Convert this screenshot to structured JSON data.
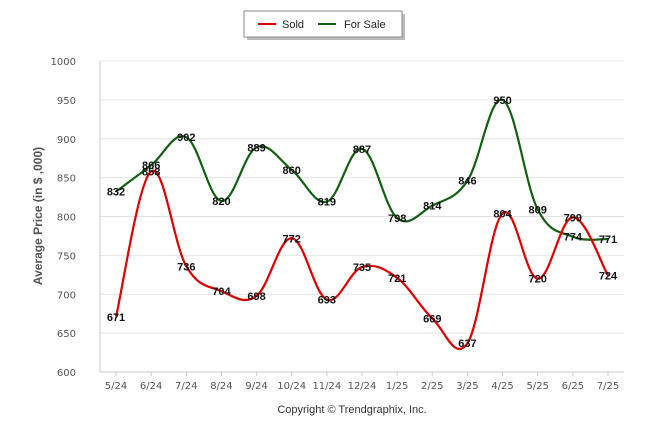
{
  "chart_data": {
    "type": "line",
    "categories": [
      "5/24",
      "6/24",
      "7/24",
      "8/24",
      "9/24",
      "10/24",
      "11/24",
      "12/24",
      "1/25",
      "2/25",
      "3/25",
      "4/25",
      "5/25",
      "6/25",
      "7/25"
    ],
    "series": [
      {
        "name": "Sold",
        "color": "#dd0000",
        "values": [
          671,
          858,
          736,
          704,
          698,
          772,
          693,
          735,
          721,
          669,
          637,
          804,
          720,
          799,
          724
        ]
      },
      {
        "name": "For Sale",
        "color": "#106010",
        "values": [
          832,
          866,
          902,
          820,
          889,
          860,
          819,
          887,
          798,
          814,
          846,
          950,
          809,
          774,
          771
        ]
      }
    ],
    "ylabel": "Average Price (in $ ,000)",
    "xlabel": "",
    "ylim": [
      600,
      1000
    ],
    "yticks": [
      600,
      650,
      700,
      750,
      800,
      850,
      900,
      950,
      1000
    ],
    "grid": true,
    "legend_position": "top-center"
  },
  "legend": {
    "sold_label": "Sold",
    "for_sale_label": "For Sale"
  },
  "copyright": "Copyright © Trendgraphix, Inc."
}
